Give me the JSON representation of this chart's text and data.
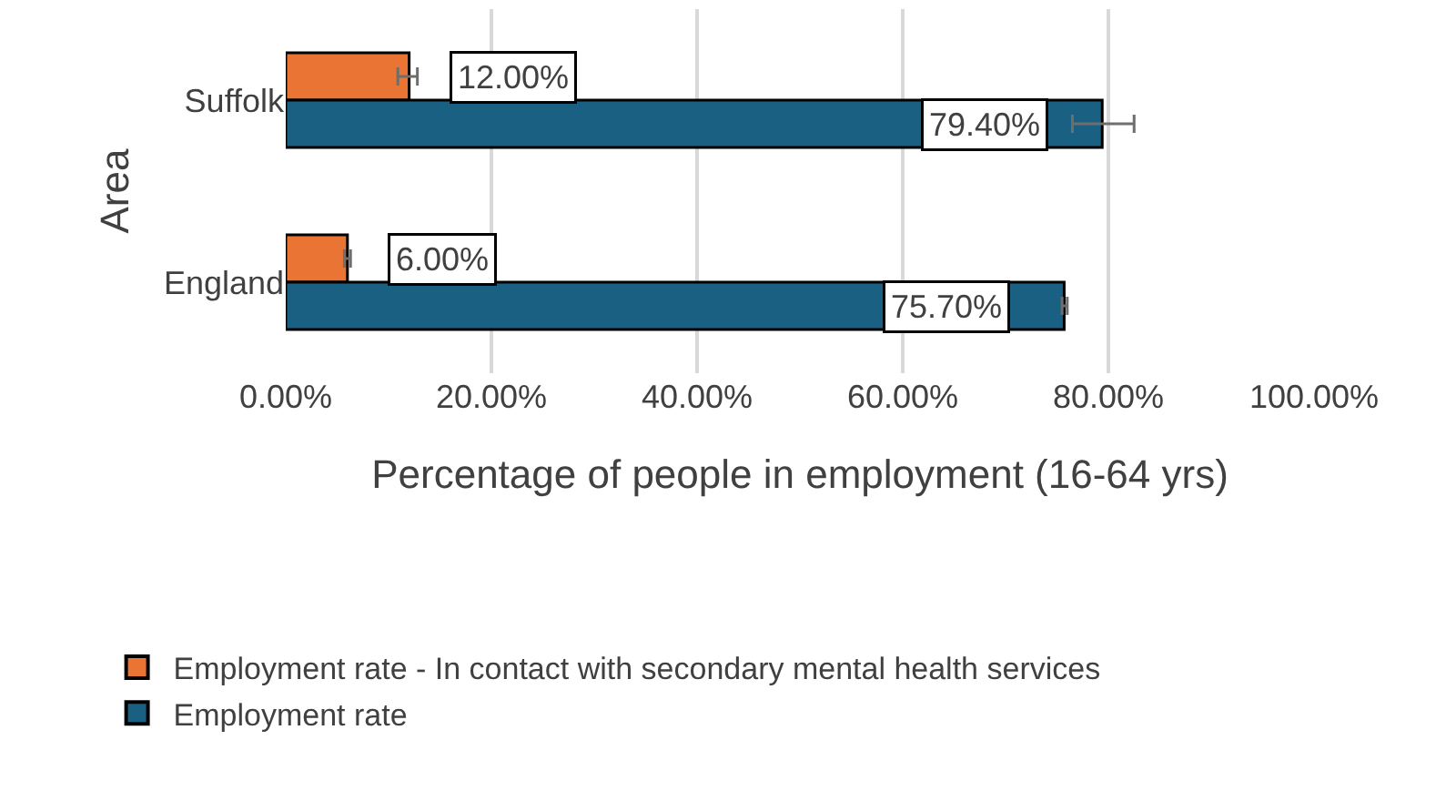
{
  "chart_data": {
    "type": "bar",
    "orientation": "horizontal",
    "xlabel": "Percentage of people in employment (16-64 yrs)",
    "ylabel": "Area",
    "categories": [
      "Suffolk",
      "England"
    ],
    "series": [
      {
        "name": "Employment rate - In contact with secondary mental health services",
        "color": "#ea7434",
        "values": [
          12.0,
          6.0
        ],
        "errors": [
          [
            10.9,
            12.8
          ],
          [
            5.7,
            6.3
          ]
        ],
        "value_labels": [
          "12.00%",
          "6.00%"
        ]
      },
      {
        "name": "Employment rate",
        "color": "#1a6082",
        "values": [
          79.4,
          75.7
        ],
        "errors": [
          [
            76.5,
            82.5
          ],
          [
            75.5,
            76.0
          ]
        ],
        "value_labels": [
          "79.40%",
          "75.70%"
        ]
      }
    ],
    "xlim": [
      0,
      100
    ],
    "xticks": [
      {
        "value": 0,
        "label": "0.00%"
      },
      {
        "value": 20,
        "label": "20.00%"
      },
      {
        "value": 40,
        "label": "40.00%"
      },
      {
        "value": 60,
        "label": "60.00%"
      },
      {
        "value": 80,
        "label": "80.00%"
      },
      {
        "value": 100,
        "label": "100.00%"
      }
    ],
    "grid": "x",
    "legend": "bottom"
  }
}
